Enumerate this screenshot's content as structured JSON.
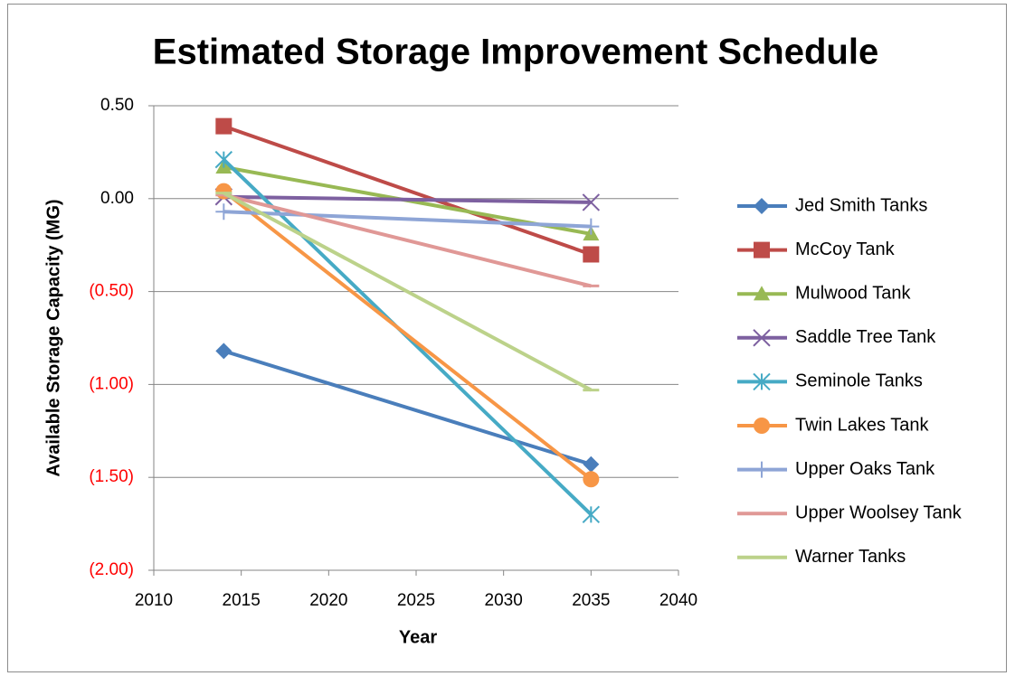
{
  "chart_data": {
    "type": "line",
    "title": "Estimated Storage Improvement Schedule",
    "xlabel": "Year",
    "ylabel": "Available Storage Capacity (MG)",
    "x": [
      2014,
      2035
    ],
    "series": [
      {
        "name": "Jed Smith Tanks",
        "color": "#4a7ebb",
        "marker": "diamond",
        "values": [
          -0.82,
          -1.43
        ]
      },
      {
        "name": "McCoy Tank",
        "color": "#be4b48",
        "marker": "square",
        "values": [
          0.39,
          -0.3
        ]
      },
      {
        "name": "Mulwood Tank",
        "color": "#98b954",
        "marker": "triangle",
        "values": [
          0.17,
          -0.19
        ]
      },
      {
        "name": "Saddle Tree Tank",
        "color": "#7d60a0",
        "marker": "x",
        "values": [
          0.01,
          -0.02
        ]
      },
      {
        "name": "Seminole Tanks",
        "color": "#46aac5",
        "marker": "asterisk",
        "values": [
          0.21,
          -1.7
        ]
      },
      {
        "name": "Twin Lakes Tank",
        "color": "#f79646",
        "marker": "circle",
        "values": [
          0.04,
          -1.51
        ]
      },
      {
        "name": "Upper Oaks Tank",
        "color": "#8ea5d6",
        "marker": "plus",
        "values": [
          -0.07,
          -0.15
        ]
      },
      {
        "name": "Upper Woolsey Tank",
        "color": "#e09896",
        "marker": "dash",
        "values": [
          0.02,
          -0.47
        ]
      },
      {
        "name": "Warner Tanks",
        "color": "#bcd28a",
        "marker": "dash",
        "values": [
          0.03,
          -1.03
        ]
      }
    ],
    "xlim": [
      2010,
      2040
    ],
    "xticks": [
      2010,
      2015,
      2020,
      2025,
      2030,
      2035,
      2040
    ],
    "ylim": [
      -2,
      0.5
    ],
    "yticks": [
      {
        "value": -2,
        "label": "(2.00)"
      },
      {
        "value": -1.5,
        "label": "(1.50)"
      },
      {
        "value": -1,
        "label": "(1.00)"
      },
      {
        "value": -0.5,
        "label": "(0.50)"
      },
      {
        "value": 0,
        "label": "0.00"
      },
      {
        "value": 0.5,
        "label": "0.50"
      }
    ],
    "negative_tick_color": "#ff0000",
    "grid": true,
    "legend": "right"
  }
}
